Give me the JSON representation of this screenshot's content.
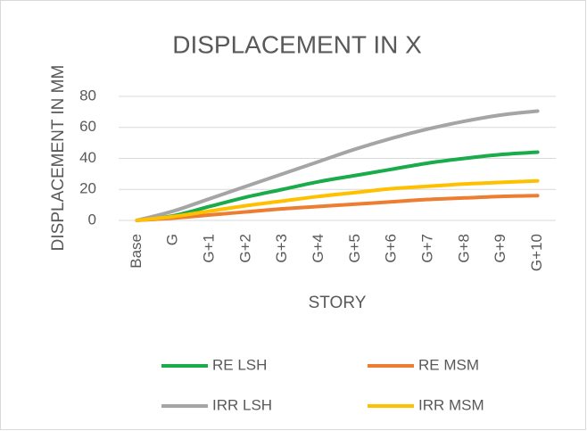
{
  "chart_data": {
    "type": "line",
    "title": "DISPLACEMENT IN X",
    "x_label": "STORY",
    "y_label": "DISPLACEMENT IN MM",
    "categories": [
      "Base",
      "G",
      "G+1",
      "G+2",
      "G+3",
      "G+4",
      "G+5",
      "G+6",
      "G+7",
      "G+8",
      "G+9",
      "G+10"
    ],
    "series": [
      {
        "name": "RE LSH",
        "color": "#1aab4b",
        "values": [
          0,
          3,
          9,
          15,
          20,
          25,
          29,
          33,
          37,
          40,
          42.5,
          44
        ]
      },
      {
        "name": "RE MSM",
        "color": "#ed7d31",
        "values": [
          0,
          1.5,
          3.5,
          5.5,
          7.5,
          9,
          10.5,
          12,
          13.5,
          14.5,
          15.5,
          16
        ]
      },
      {
        "name": "IRR LSH",
        "color": "#a5a5a5",
        "values": [
          0,
          6,
          14,
          22,
          30,
          38,
          46,
          53,
          59,
          64,
          68,
          70.5
        ]
      },
      {
        "name": "IRR MSM",
        "color": "#ffc000",
        "values": [
          0,
          2.5,
          6,
          9.5,
          12.5,
          15.5,
          18,
          20.5,
          22,
          23.5,
          24.5,
          25.5
        ]
      }
    ],
    "ylim": [
      0,
      80
    ],
    "yticks": [
      0,
      20,
      40,
      60,
      80
    ],
    "grid": true,
    "legend": "bottom"
  }
}
